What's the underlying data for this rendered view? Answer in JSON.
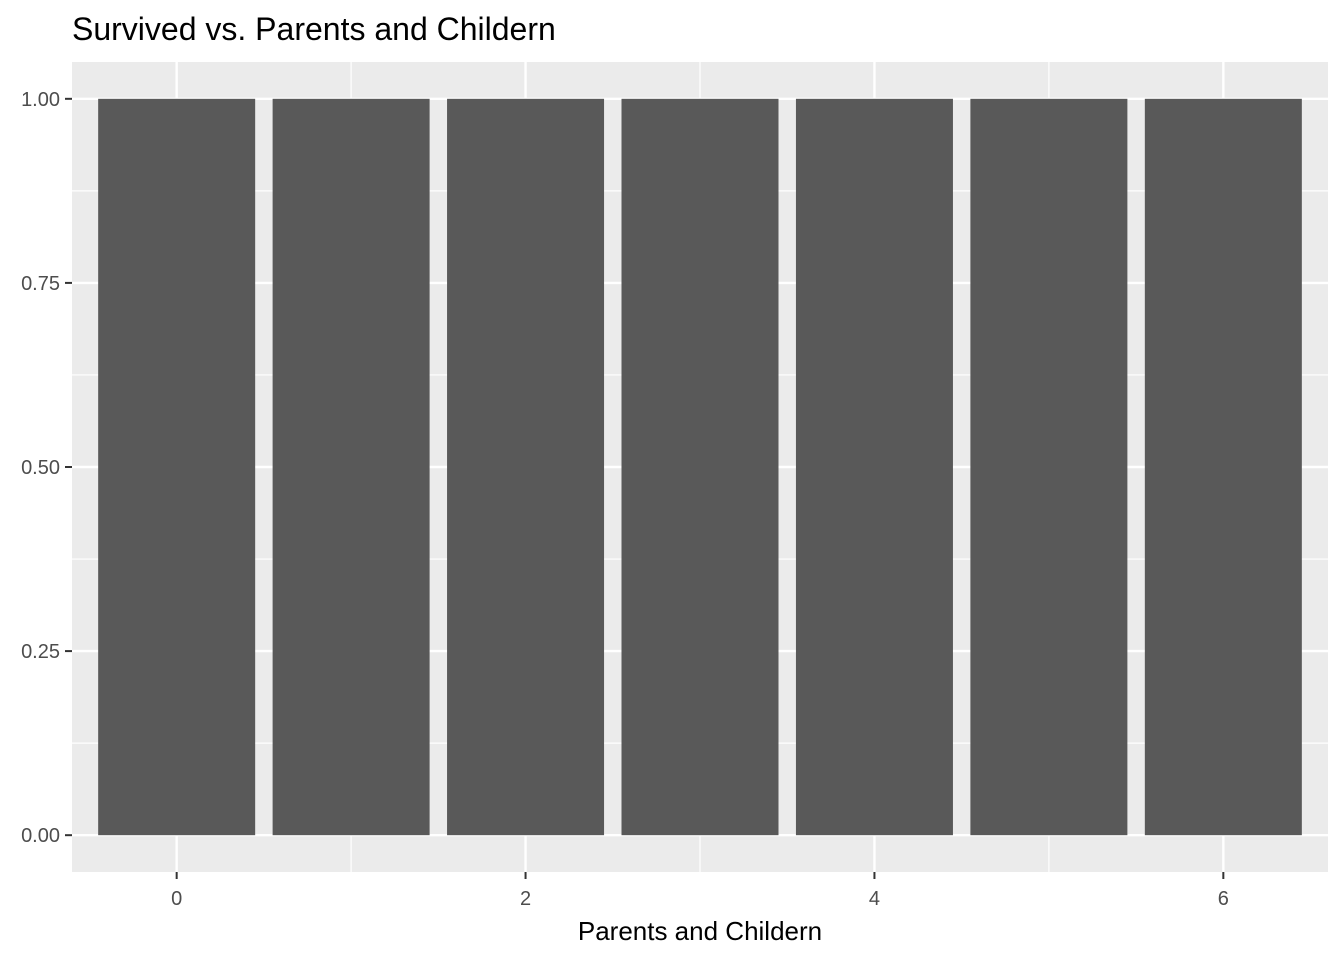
{
  "chart_data": {
    "type": "bar",
    "title": "Survived vs. Parents and Childern",
    "xlabel": "Parents and Childern",
    "ylabel": "",
    "x": [
      0,
      1,
      2,
      3,
      4,
      5,
      6
    ],
    "values": [
      1.0,
      1.0,
      1.0,
      1.0,
      1.0,
      1.0,
      1.0
    ],
    "xlim": [
      -0.6,
      6.6
    ],
    "ylim": [
      -0.05,
      1.05
    ],
    "x_ticks": [
      0,
      2,
      4,
      6
    ],
    "x_tick_labels": [
      "0",
      "2",
      "4",
      "6"
    ],
    "y_ticks": [
      0,
      0.25,
      0.5,
      0.75,
      1.0
    ],
    "y_tick_labels": [
      "0.00",
      "0.25",
      "0.50",
      "0.75",
      "1.00"
    ],
    "grid": true,
    "legend": "none",
    "colors": {
      "bar": "#595959",
      "panel": "#ebebeb",
      "grid": "#ffffff",
      "tick_text": "#4d4d4d",
      "tick_mark": "#333333"
    }
  }
}
